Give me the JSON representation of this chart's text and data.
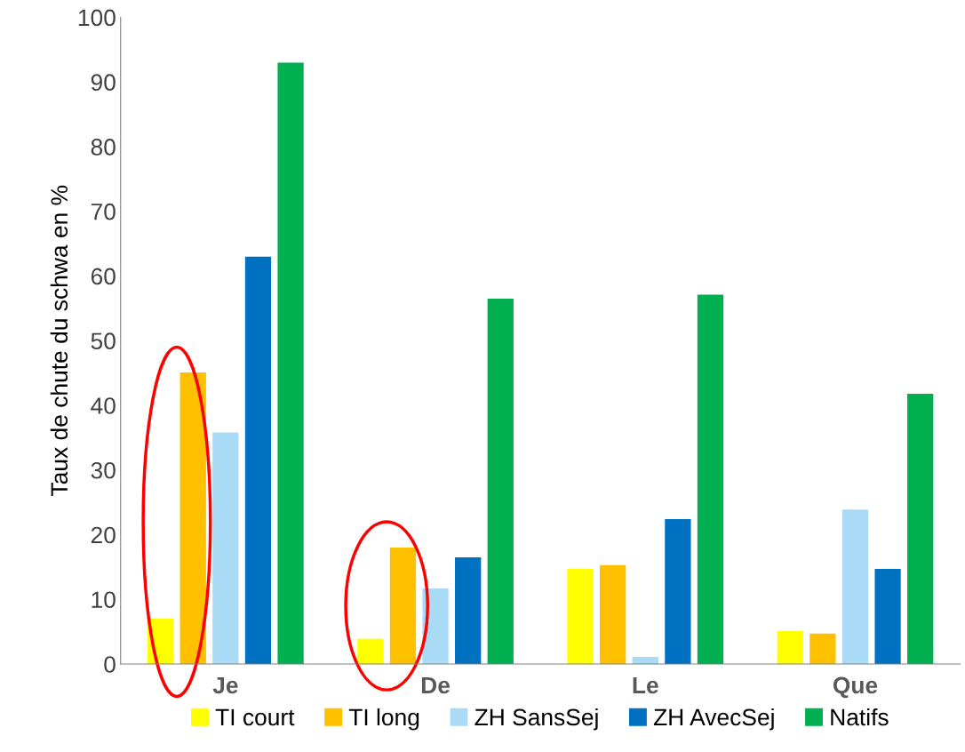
{
  "chart_data": {
    "type": "bar",
    "ylabel": "Taux de chute du schwa en %",
    "categories": [
      "Je",
      "De",
      "Le",
      "Que"
    ],
    "series": [
      {
        "name": "TI court",
        "color": "#ffff00",
        "values": [
          7,
          3.9,
          14.7,
          5.1
        ]
      },
      {
        "name": "TI long",
        "color": "#ffc000",
        "values": [
          45.1,
          18,
          15.3,
          4.7
        ]
      },
      {
        "name": "ZH SansSej",
        "color": "#a9dbf7",
        "values": [
          35.8,
          11.7,
          1.1,
          23.9
        ]
      },
      {
        "name": "ZH AvecSej",
        "color": "#0070c0",
        "values": [
          63,
          16.5,
          22.4,
          14.7
        ]
      },
      {
        "name": "Natifs",
        "color": "#00b050",
        "values": [
          93,
          56.5,
          57.1,
          41.8
        ]
      }
    ],
    "ylim": [
      0,
      100
    ],
    "yticks": [
      0,
      10,
      20,
      30,
      40,
      50,
      60,
      70,
      80,
      90,
      100
    ],
    "grid": false,
    "legend": "bottom"
  }
}
